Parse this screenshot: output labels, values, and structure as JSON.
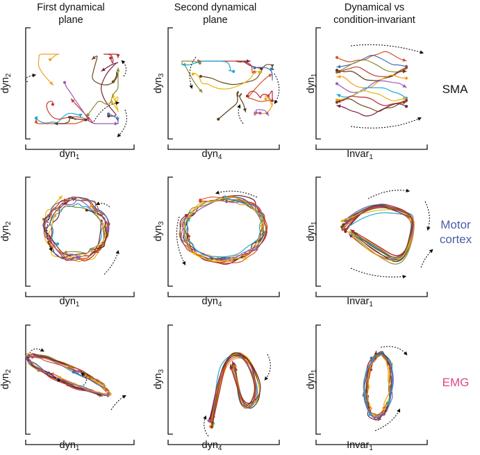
{
  "columns": [
    {
      "title_line1": "First dynamical",
      "title_line2": "plane",
      "x_base": "dyn",
      "x_sub": "1",
      "y_base": "dyn",
      "y_sub": "2"
    },
    {
      "title_line1": "Second dynamical",
      "title_line2": "plane",
      "x_base": "dyn",
      "x_sub": "4",
      "y_base": "dyn",
      "y_sub": "3"
    },
    {
      "title_line1": "Dynamical vs",
      "title_line2": "condition-invariant",
      "x_base": "Invar",
      "x_sub": "1",
      "y_base": "dyn",
      "y_sub": "1"
    }
  ],
  "rows": [
    {
      "label_line1": "SMA",
      "label_line2": "",
      "color": "#111111"
    },
    {
      "label_line1": "Motor",
      "label_line2": "cortex",
      "color": "#4a5ea8"
    },
    {
      "label_line1": "EMG",
      "label_line2": "",
      "color": "#e0458a"
    }
  ],
  "colors": {
    "axis": "#111111",
    "trajectories": [
      "#1fa7d8",
      "#e8b400",
      "#b8262b",
      "#6b4b1f",
      "#7a1f3a",
      "#d6532a",
      "#3f6fb0",
      "#8a8a2a",
      "#c0392b",
      "#5a3a1a",
      "#f0a020",
      "#9b59b6"
    ],
    "arrows": "#111111"
  }
}
